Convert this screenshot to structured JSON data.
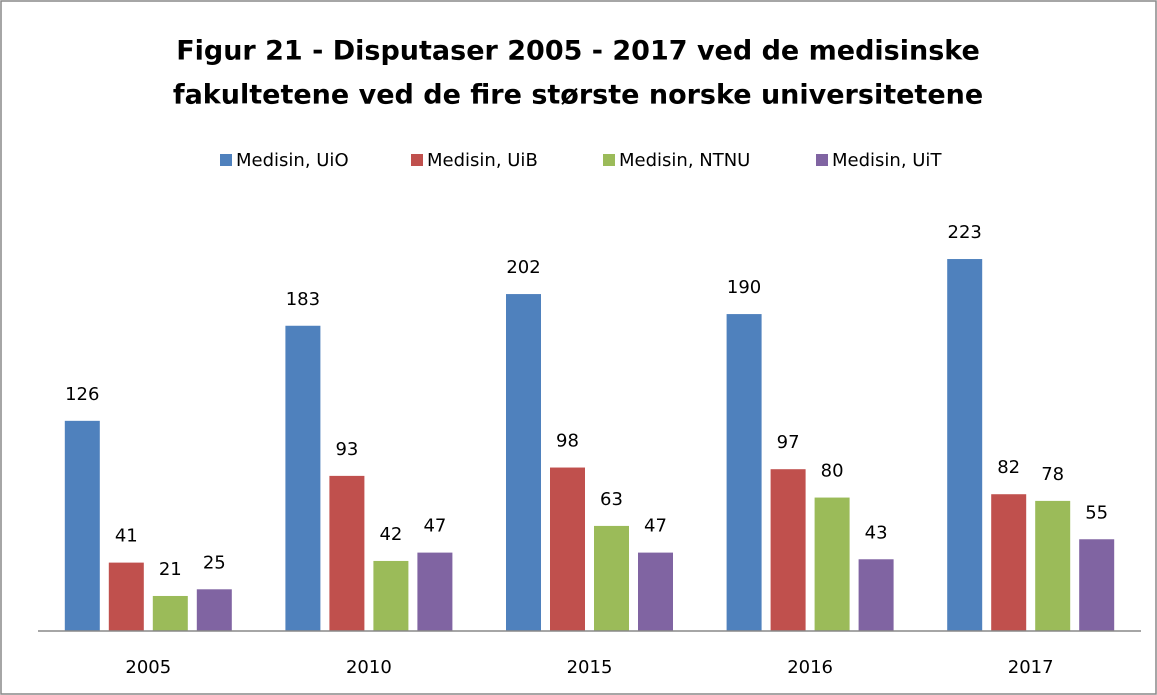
{
  "chart_data": {
    "type": "bar",
    "title": [
      "Figur 21 - Disputaser 2005 - 2017 ved de medisinske",
      "fakultetene ved de fire største norske universitetene"
    ],
    "categories": [
      "2005",
      "2010",
      "2015",
      "2016",
      "2017"
    ],
    "series": [
      {
        "name": "Medisin, UiO",
        "color": "#4f81bd",
        "values": [
          126,
          183,
          202,
          190,
          223
        ]
      },
      {
        "name": "Medisin, UiB",
        "color": "#c0504d",
        "values": [
          41,
          93,
          98,
          97,
          82
        ]
      },
      {
        "name": "Medisin, NTNU",
        "color": "#9bbb59",
        "values": [
          21,
          42,
          63,
          80,
          78
        ]
      },
      {
        "name": "Medisin, UiT",
        "color": "#8064a2",
        "values": [
          25,
          47,
          47,
          43,
          55
        ]
      }
    ],
    "ylim": [
      0,
      250
    ],
    "legend": "top",
    "grid": false
  }
}
